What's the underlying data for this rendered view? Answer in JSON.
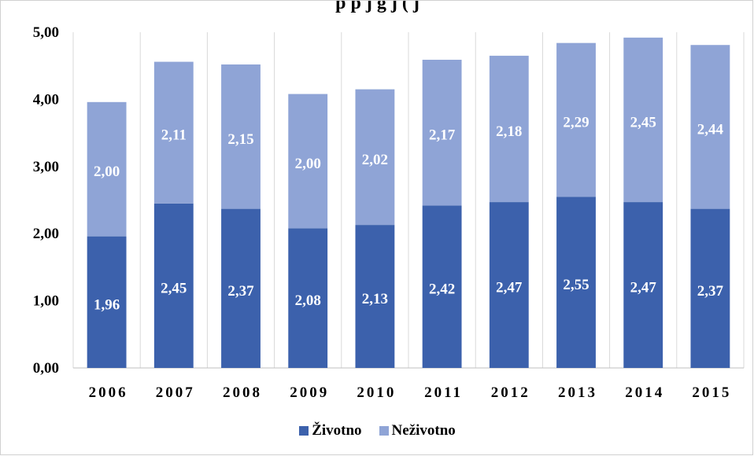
{
  "chart_data": {
    "type": "bar",
    "stacked": true,
    "title": "…prosečne premije godišnje… (fragment visible at top)",
    "title_visible": "p          p      j g          j             (       j",
    "categories": [
      "2006",
      "2007",
      "2008",
      "2009",
      "2010",
      "2011",
      "2012",
      "2013",
      "2014",
      "2015"
    ],
    "series": [
      {
        "name": "Životno",
        "color": "#3c61ac",
        "values": [
          1.96,
          2.45,
          2.37,
          2.08,
          2.13,
          2.42,
          2.47,
          2.55,
          2.47,
          2.37
        ],
        "labels": [
          "1,96",
          "2,45",
          "2,37",
          "2,08",
          "2,13",
          "2,42",
          "2,47",
          "2,55",
          "2,47",
          "2,37"
        ]
      },
      {
        "name": "Neživotno",
        "color": "#8fa4d6",
        "values": [
          2.0,
          2.11,
          2.15,
          2.0,
          2.02,
          2.17,
          2.18,
          2.29,
          2.45,
          2.44
        ],
        "labels": [
          "2,00",
          "2,11",
          "2,15",
          "2,00",
          "2,02",
          "2,17",
          "2,18",
          "2,29",
          "2,45",
          "2,44"
        ]
      }
    ],
    "ylim": [
      0,
      5
    ],
    "yticks": [
      "0,00",
      "1,00",
      "2,00",
      "3,00",
      "4,00",
      "5,00"
    ],
    "xlabel": "",
    "ylabel": "",
    "grid": "vertical",
    "legend_position": "bottom"
  }
}
